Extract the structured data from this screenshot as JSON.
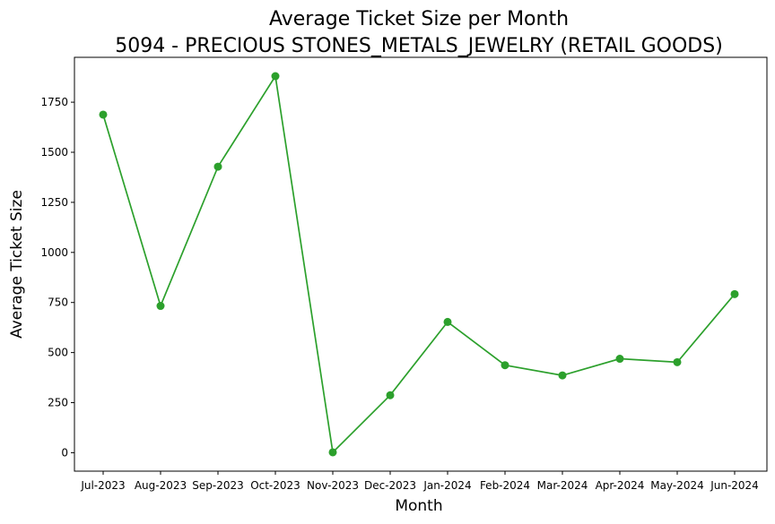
{
  "chart_data": {
    "type": "line",
    "title": "Average Ticket Size per Month",
    "subtitle": "5094 - PRECIOUS STONES_METALS_JEWELRY (RETAIL GOODS)",
    "xlabel": "Month",
    "ylabel": "Average Ticket Size",
    "categories": [
      "Jul-2023",
      "Aug-2023",
      "Sep-2023",
      "Oct-2023",
      "Nov-2023",
      "Dec-2023",
      "Jan-2024",
      "Feb-2024",
      "Mar-2024",
      "Apr-2024",
      "May-2024",
      "Jun-2024"
    ],
    "series": [
      {
        "values": [
          1688,
          733,
          1428,
          1880,
          2,
          287,
          653,
          437,
          386,
          469,
          452,
          792
        ],
        "color": "#2ca02c"
      }
    ],
    "yticks": [
      0,
      250,
      500,
      750,
      1000,
      1250,
      1500,
      1750
    ],
    "ylim": [
      -92,
      1974
    ],
    "grid": false,
    "legend": "none"
  }
}
